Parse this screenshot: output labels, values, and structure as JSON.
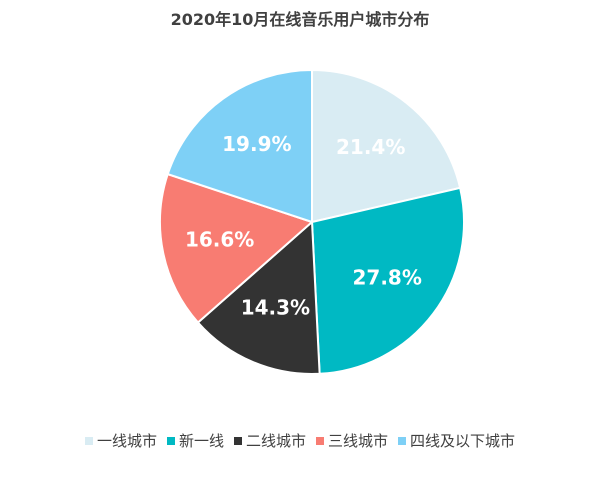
{
  "chart_data": {
    "type": "pie",
    "title": "2020年10月在线音乐用户城市分布",
    "categories": [
      "一线城市",
      "新一线",
      "二线城市",
      "三线城市",
      "四线及以下城市"
    ],
    "values": [
      21.4,
      27.8,
      14.3,
      16.6,
      19.9
    ],
    "labels": [
      "21.4%",
      "27.8%",
      "14.3%",
      "16.6%",
      "19.9%"
    ],
    "colors": [
      "#d9ecf3",
      "#00b9c3",
      "#333333",
      "#f87c72",
      "#7ed0f6"
    ],
    "label_colors": [
      "#ffffff",
      "#ffffff",
      "#ffffff",
      "#ffffff",
      "#ffffff"
    ],
    "legend_position": "bottom",
    "unit": "%"
  }
}
